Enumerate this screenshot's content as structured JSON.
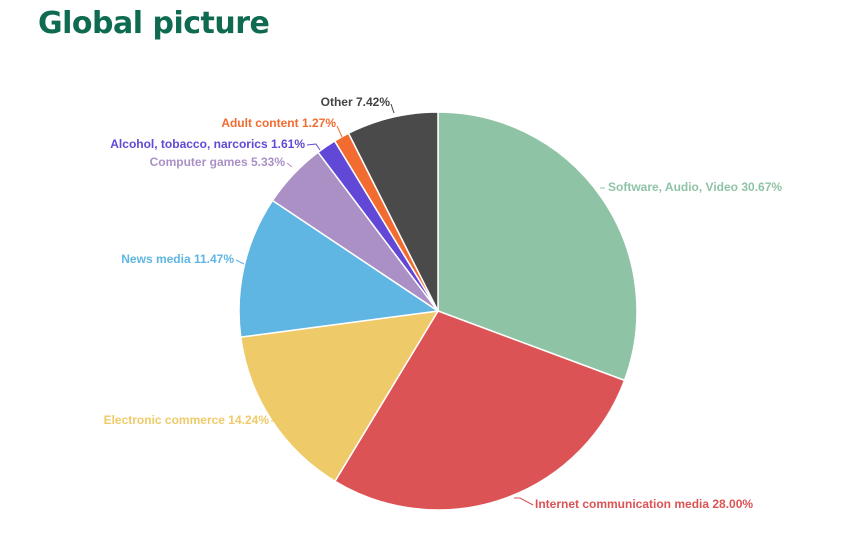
{
  "page": {
    "title": "Global picture",
    "title_color": "#0e6b52"
  },
  "chart_data": {
    "type": "pie",
    "title": "",
    "start_angle_deg": 0,
    "direction": "clockwise",
    "slices": [
      {
        "label": "Software, Audio, Video",
        "value": 30.67,
        "display": "Software, Audio, Video 30.67%",
        "color": "#8fc3a6"
      },
      {
        "label": "Internet communication media",
        "value": 28.0,
        "display": "Internet communication media 28.00%",
        "color": "#dc5355"
      },
      {
        "label": "Electronic commerce",
        "value": 14.24,
        "display": "Electronic commerce 14.24%",
        "color": "#efca69"
      },
      {
        "label": "News media",
        "value": 11.47,
        "display": "News media 11.47%",
        "color": "#5fb6e3"
      },
      {
        "label": "Computer games",
        "value": 5.33,
        "display": "Computer games 5.33%",
        "color": "#ab90c6"
      },
      {
        "label": "Alcohol, tobacco, narcorics",
        "value": 1.61,
        "display": "Alcohol, tobacco, narcorics 1.61%",
        "color": "#6248d6"
      },
      {
        "label": "Adult content",
        "value": 1.27,
        "display": "Adult content 1.27%",
        "color": "#f26b30"
      },
      {
        "label": "Other",
        "value": 7.42,
        "display": "Other 7.42%",
        "color": "#4a4a4a",
        "label_color": "#444444"
      }
    ]
  }
}
